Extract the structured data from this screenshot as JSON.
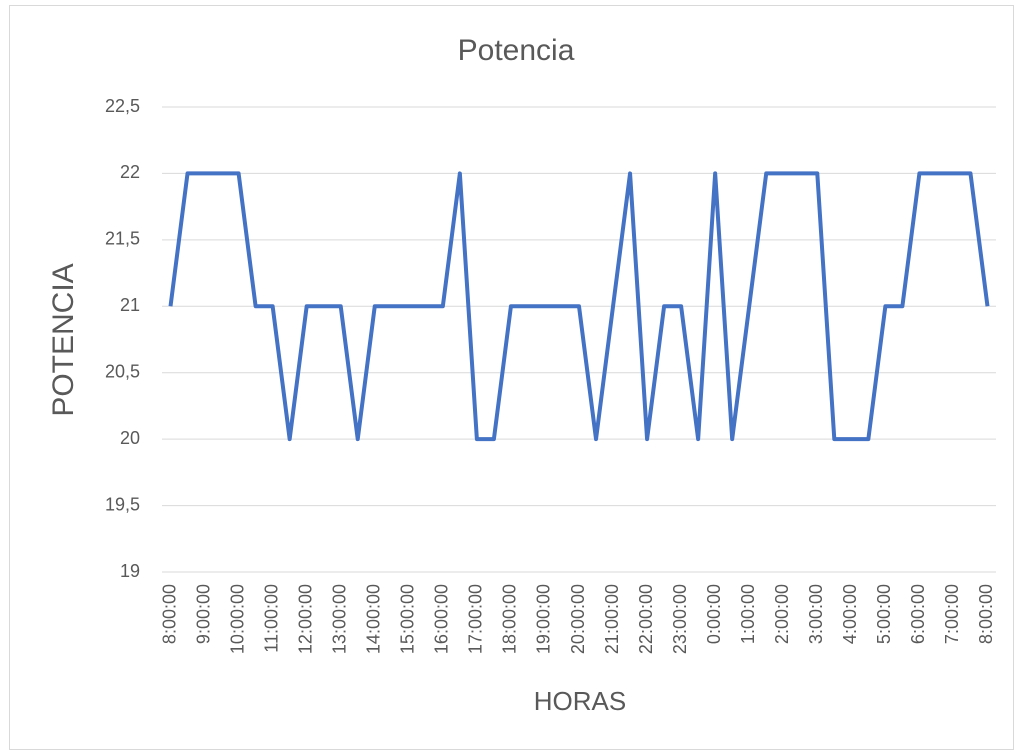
{
  "chart_data": {
    "type": "line",
    "title": "Potencia",
    "x_label": "HORAS",
    "y_label": "POTENCIA",
    "categories": [
      "8:00:00",
      null,
      "9:00:00",
      null,
      "10:00:00",
      null,
      "11:00:00",
      null,
      "12:00:00",
      null,
      "13:00:00",
      null,
      "14:00:00",
      null,
      "15:00:00",
      null,
      "16:00:00",
      null,
      "17:00:00",
      null,
      "18:00:00",
      null,
      "19:00:00",
      null,
      "20:00:00",
      null,
      "21:00:00",
      null,
      "22:00:00",
      null,
      "23:00:00",
      null,
      "0:00:00",
      null,
      "1:00:00",
      null,
      "2:00:00",
      null,
      "3:00:00",
      null,
      "4:00:00",
      null,
      "5:00:00",
      null,
      "6:00:00",
      null,
      "7:00:00",
      null,
      "8:00:00"
    ],
    "values": [
      21,
      22,
      22,
      22,
      22,
      21,
      21,
      20,
      21,
      21,
      21,
      20,
      21,
      21,
      21,
      21,
      21,
      22,
      20,
      20,
      21,
      21,
      21,
      21,
      21,
      20,
      21,
      22,
      20,
      21,
      21,
      20,
      22,
      20,
      21,
      22,
      22,
      22,
      22,
      20,
      20,
      20,
      21,
      21,
      22,
      22,
      22,
      22,
      21
    ],
    "color": "#4472c4",
    "ylim": [
      19,
      22.5
    ],
    "yticks": [
      19,
      {
        "value": 19.5,
        "label": "19,5"
      },
      20,
      {
        "value": 20.5,
        "label": "20,5"
      },
      21,
      {
        "value": 21.5,
        "label": "21,5"
      },
      22,
      {
        "value": 22.5,
        "label": "22,5"
      }
    ],
    "grid": true
  }
}
